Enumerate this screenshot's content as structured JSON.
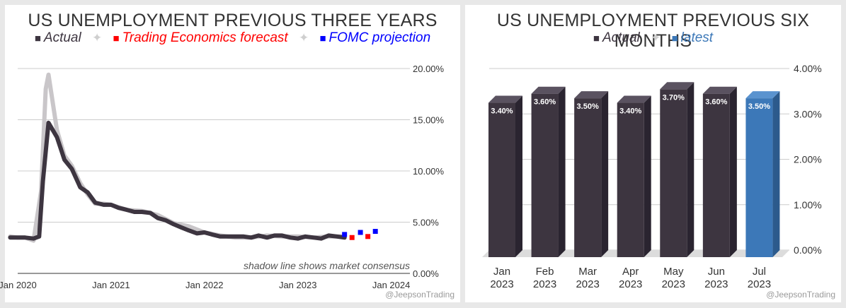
{
  "chart_data": [
    {
      "type": "line",
      "title": "US UNEMPLOYMENT PREVIOUS THREE YEARS",
      "legend": [
        {
          "label": "Actual",
          "color": "#3d3540"
        },
        {
          "label": "Trading Economics forecast",
          "color": "#ff0000"
        },
        {
          "label": "FOMC projection",
          "color": "#0000ff"
        }
      ],
      "legend_separator": "✦",
      "x_ticks": [
        "Jan 2020",
        "Jan 2021",
        "Jan 2022",
        "Jan 2023",
        "Jan 2024"
      ],
      "x_tick_values": [
        2020,
        2021,
        2022,
        2023,
        2024
      ],
      "xlim": [
        2020,
        2024.2
      ],
      "ylim": [
        0,
        20
      ],
      "y_ticks": [
        "0.00%",
        "5.00%",
        "10.00%",
        "15.00%",
        "20.00%"
      ],
      "y_tick_values": [
        0,
        5,
        10,
        15,
        20
      ],
      "annotation": "shadow line shows market consensus",
      "series": [
        {
          "name": "Actual",
          "color": "#3d3540",
          "x": [
            2019.92,
            2020.0,
            2020.08,
            2020.17,
            2020.23,
            2020.27,
            2020.33,
            2020.42,
            2020.5,
            2020.58,
            2020.67,
            2020.75,
            2020.83,
            2020.92,
            2021.0,
            2021.08,
            2021.17,
            2021.25,
            2021.33,
            2021.42,
            2021.5,
            2021.58,
            2021.67,
            2021.75,
            2021.83,
            2021.92,
            2022.0,
            2022.08,
            2022.17,
            2022.25,
            2022.33,
            2022.42,
            2022.5,
            2022.58,
            2022.67,
            2022.75,
            2022.83,
            2022.92,
            2023.0,
            2023.08,
            2023.17,
            2023.25,
            2023.33,
            2023.42,
            2023.5
          ],
          "y": [
            3.5,
            3.5,
            3.5,
            3.4,
            3.6,
            9.0,
            14.7,
            13.3,
            11.1,
            10.2,
            8.4,
            7.9,
            6.9,
            6.7,
            6.7,
            6.4,
            6.2,
            6.0,
            6.0,
            5.9,
            5.4,
            5.2,
            4.8,
            4.5,
            4.2,
            3.9,
            4.0,
            3.8,
            3.6,
            3.6,
            3.6,
            3.6,
            3.5,
            3.7,
            3.5,
            3.7,
            3.7,
            3.5,
            3.4,
            3.6,
            3.5,
            3.4,
            3.7,
            3.6,
            3.5
          ]
        },
        {
          "name": "Consensus",
          "color": "#c9c6c9",
          "x": [
            2019.92,
            2020.0,
            2020.08,
            2020.17,
            2020.25,
            2020.3,
            2020.33,
            2020.42,
            2020.5,
            2020.58,
            2020.67,
            2020.75,
            2020.83,
            2020.92,
            2021.0,
            2021.17,
            2021.33,
            2021.5,
            2021.67,
            2021.83,
            2022.0,
            2022.17,
            2022.33,
            2022.5,
            2022.67,
            2022.83,
            2023.0,
            2023.17,
            2023.33,
            2023.5
          ],
          "y": [
            3.6,
            3.5,
            3.5,
            3.2,
            8.0,
            18.0,
            19.4,
            14.0,
            11.5,
            10.5,
            8.8,
            7.7,
            6.8,
            6.8,
            6.7,
            6.2,
            6.1,
            5.7,
            4.9,
            4.6,
            4.0,
            3.7,
            3.5,
            3.5,
            3.7,
            3.6,
            3.6,
            3.5,
            3.6,
            3.6
          ]
        },
        {
          "name": "Trading Economics forecast",
          "color": "#ff0000",
          "x": [
            2023.58,
            2023.75
          ],
          "y": [
            3.5,
            3.6
          ]
        },
        {
          "name": "FOMC projection",
          "color": "#0000ff",
          "x": [
            2023.5,
            2023.67,
            2023.83
          ],
          "y": [
            3.8,
            4.0,
            4.1
          ]
        }
      ],
      "credit": "@JeepsonTrading"
    },
    {
      "type": "bar",
      "title": "US UNEMPLOYMENT PREVIOUS SIX MONTHS",
      "legend": [
        {
          "label": "Actual",
          "color": "#3d3540"
        },
        {
          "label": "latest",
          "color": "#3c78b8"
        }
      ],
      "legend_separator": "✦",
      "categories": [
        "Jan\n2023",
        "Feb\n2023",
        "Mar\n2023",
        "Apr\n2023",
        "May\n2023",
        "Jun\n2023",
        "Jul\n2023"
      ],
      "values": [
        3.4,
        3.6,
        3.5,
        3.4,
        3.7,
        3.6,
        3.5
      ],
      "value_labels": [
        "3.40%",
        "3.60%",
        "3.50%",
        "3.40%",
        "3.70%",
        "3.60%",
        "3.50%"
      ],
      "colors": [
        "#3d3540",
        "#3d3540",
        "#3d3540",
        "#3d3540",
        "#3d3540",
        "#3d3540",
        "#3c78b8"
      ],
      "ylim": [
        0,
        4
      ],
      "y_ticks": [
        "0.00%",
        "1.00%",
        "2.00%",
        "3.00%",
        "4.00%"
      ],
      "y_tick_values": [
        0,
        1,
        2,
        3,
        4
      ],
      "credit": "@JeepsonTrading"
    }
  ]
}
